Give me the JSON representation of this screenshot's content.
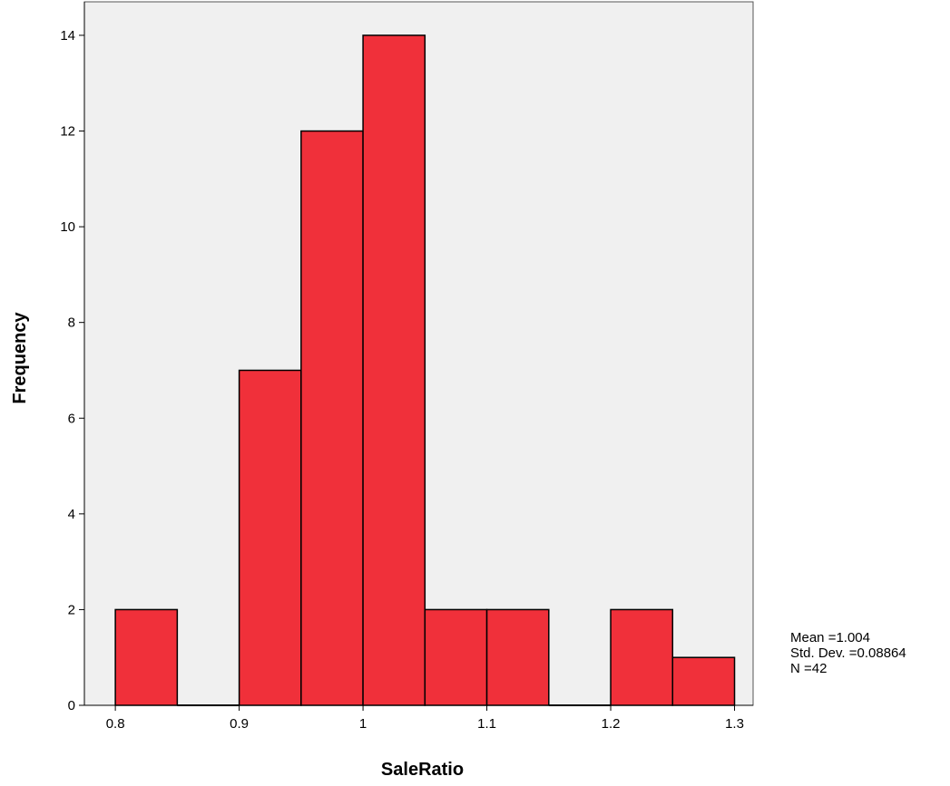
{
  "chart_data": {
    "type": "bar",
    "subtype": "histogram",
    "xlabel": "SaleRatio",
    "ylabel": "Frequency",
    "bin_edges": [
      0.8,
      0.85,
      0.9,
      0.95,
      1.0,
      1.05,
      1.1,
      1.15,
      1.2,
      1.25,
      1.3
    ],
    "values": [
      2,
      0,
      7,
      12,
      14,
      2,
      2,
      0,
      2,
      1
    ],
    "xlim": [
      0.775,
      1.315
    ],
    "ylim": [
      0,
      14.7
    ],
    "xticks": [
      0.8,
      0.9,
      1.0,
      1.1,
      1.2,
      1.3
    ],
    "xtick_labels": [
      "0.8",
      "0.9",
      "1",
      "1.1",
      "1.2",
      "1.3"
    ],
    "yticks": [
      0,
      2,
      4,
      6,
      8,
      10,
      12,
      14
    ],
    "ytick_labels": [
      "0",
      "2",
      "4",
      "6",
      "8",
      "10",
      "12",
      "14"
    ],
    "grid": false,
    "colors": {
      "bar": "#f0303a",
      "plot_background": "#f0f0f0",
      "bar_edge": "#000000"
    }
  },
  "stats": {
    "mean": "Mean =1.004",
    "std_dev": "Std. Dev. =0.08864",
    "n": "N =42"
  }
}
